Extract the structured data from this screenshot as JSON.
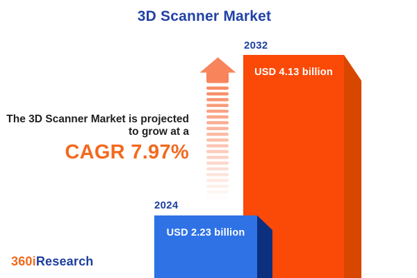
{
  "page": {
    "title": "3D Scanner Market",
    "annotation": {
      "line1": "The 3D Scanner Market is projected",
      "line2": "to grow at a",
      "cagr": "CAGR 7.97%"
    },
    "bars": [
      {
        "year": "2024",
        "label": "USD 2.23 billion",
        "value": 2.23
      },
      {
        "year": "2032",
        "label": "USD 4.13 billion",
        "value": 4.13
      }
    ],
    "logo": {
      "prefix": "360i",
      "suffix": "Research"
    }
  },
  "chart_data": {
    "type": "bar",
    "title": "3D Scanner Market",
    "categories": [
      "2024",
      "2032"
    ],
    "values": [
      2.23,
      4.13
    ],
    "unit": "USD billion",
    "data_labels": [
      "USD 2.23 billion",
      "USD 4.13 billion"
    ],
    "annotation": "The 3D Scanner Market is projected to grow at a CAGR 7.97%",
    "cagr_pct": 7.97,
    "legend": false,
    "axes": "none",
    "style": "pictorial 3D bars, values labeled on bars, growth arrow between annotation and bars"
  },
  "colors": {
    "title_blue": "#2141A5",
    "label_blue": "#1C3F9E",
    "accent_orange": "#F2691E",
    "bar_orange_front": "#FB4A08",
    "bar_orange_side": "#D84700",
    "bar_blue_front": "#2E72E6",
    "bar_blue_side": "#0C2F7E",
    "arrow_orange": "#F8845C",
    "dark_text": "#1F1F1F",
    "white_text": "#FFFFFF"
  }
}
